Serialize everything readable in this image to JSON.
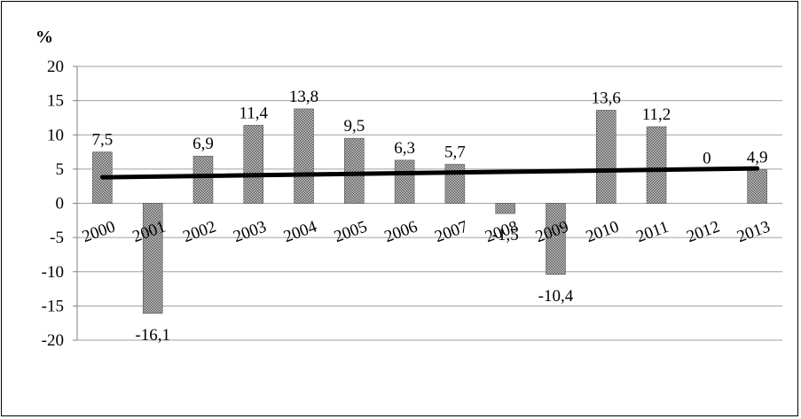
{
  "chart_data": {
    "type": "bar",
    "ylabel": "%",
    "categories": [
      "2000",
      "2001",
      "2002",
      "2003",
      "2004",
      "2005",
      "2006",
      "2007",
      "2008",
      "2009",
      "2010",
      "2011",
      "2012",
      "2013"
    ],
    "values": [
      7.5,
      -16.1,
      6.9,
      11.4,
      13.8,
      9.5,
      6.3,
      5.7,
      -1.5,
      -10.4,
      13.6,
      11.2,
      0,
      4.9
    ],
    "data_labels": [
      "7,5",
      "-16,1",
      "6,9",
      "11,4",
      "13,8",
      "9,5",
      "6,3",
      "5,7",
      "-1,5",
      "-10,4",
      "13,6",
      "11,2",
      "0",
      "4,9"
    ],
    "y_ticks": [
      "20",
      "15",
      "10",
      "5",
      "0",
      "-5",
      "-10",
      "-15",
      "-20"
    ],
    "y_tick_values": [
      20,
      15,
      10,
      5,
      0,
      -5,
      -10,
      -15,
      -20
    ],
    "ylim": [
      -20,
      20
    ],
    "grid": true,
    "legend": "none",
    "trendline": {
      "type": "linear",
      "start": 3.8,
      "end": 5.1,
      "color": "#000000"
    },
    "colors": {
      "bar_fill": "#b0b0b0",
      "bar_pattern": "#606060",
      "grid": "#a0a0a0",
      "axis": "#808080"
    }
  }
}
